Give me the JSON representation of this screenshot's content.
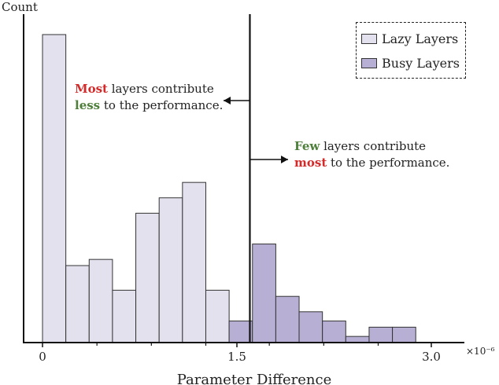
{
  "chart_data": {
    "type": "bar",
    "ylabel": "Count",
    "xlabel": "Parameter Difference",
    "x_exponent_label": "×10⁻⁶",
    "x_scale_factor": 1e-06,
    "xlim": [
      -0.12,
      3.25
    ],
    "ylim": [
      0,
      100
    ],
    "x_ticks": [
      0,
      1.5,
      3.0
    ],
    "x_tick_labels": [
      "0",
      "1.5",
      "3.0"
    ],
    "x_minor_ticks": [
      0.42,
      0.84,
      1.26,
      1.75,
      2.17,
      2.59
    ],
    "threshold_x": 1.6,
    "series": [
      {
        "name": "Lazy Layers",
        "color": "#e4e1ee",
        "bins": [
          {
            "x0": 0.0,
            "x1": 0.18,
            "value": 100
          },
          {
            "x0": 0.18,
            "x1": 0.36,
            "value": 25
          },
          {
            "x0": 0.36,
            "x1": 0.54,
            "value": 27
          },
          {
            "x0": 0.54,
            "x1": 0.72,
            "value": 17
          },
          {
            "x0": 0.72,
            "x1": 0.9,
            "value": 42
          },
          {
            "x0": 0.9,
            "x1": 1.08,
            "value": 47
          },
          {
            "x0": 1.08,
            "x1": 1.26,
            "value": 52
          },
          {
            "x0": 1.26,
            "x1": 1.44,
            "value": 17
          }
        ]
      },
      {
        "name": "Busy Layers",
        "color": "#b8b0d4",
        "bins": [
          {
            "x0": 1.44,
            "x1": 1.62,
            "value": 7
          },
          {
            "x0": 1.62,
            "x1": 1.8,
            "value": 32
          },
          {
            "x0": 1.8,
            "x1": 1.98,
            "value": 15
          },
          {
            "x0": 1.98,
            "x1": 2.16,
            "value": 10
          },
          {
            "x0": 2.16,
            "x1": 2.34,
            "value": 7
          },
          {
            "x0": 2.34,
            "x1": 2.52,
            "value": 2
          },
          {
            "x0": 2.52,
            "x1": 2.7,
            "value": 5
          },
          {
            "x0": 2.7,
            "x1": 2.88,
            "value": 5
          }
        ]
      }
    ],
    "annotations": [
      {
        "lines": [
          [
            {
              "text": "Most",
              "style": "red"
            },
            {
              "text": " layers contribute",
              "style": "normal"
            }
          ],
          [
            {
              "text": "less",
              "style": "green"
            },
            {
              "text": " to the performance.",
              "style": "normal"
            }
          ]
        ]
      },
      {
        "lines": [
          [
            {
              "text": "Few",
              "style": "green"
            },
            {
              "text": " layers contribute",
              "style": "normal"
            }
          ],
          [
            {
              "text": "most",
              "style": "red"
            },
            {
              "text": " to the performance.",
              "style": "normal"
            }
          ]
        ]
      }
    ],
    "colors": {
      "red": "#d42a2a",
      "green": "#4e7f3a",
      "axis": "#111111",
      "bar_edge": "#333333",
      "text": "#222222"
    },
    "legend": {
      "position": "top-right",
      "border": "dashed"
    },
    "grid": false
  }
}
